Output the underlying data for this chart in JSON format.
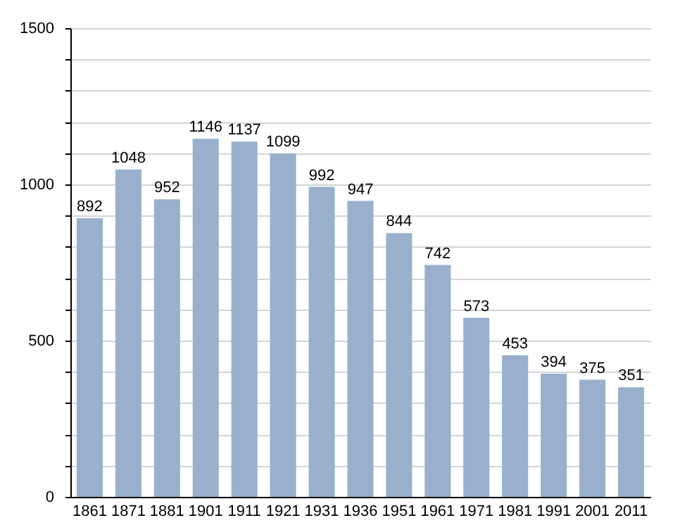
{
  "chart_data": {
    "type": "bar",
    "categories": [
      "1861",
      "1871",
      "1881",
      "1901",
      "1911",
      "1921",
      "1931",
      "1936",
      "1951",
      "1961",
      "1971",
      "1981",
      "1991",
      "2001",
      "2011"
    ],
    "values": [
      892,
      1048,
      952,
      1146,
      1137,
      1099,
      992,
      947,
      844,
      742,
      573,
      453,
      394,
      375,
      351
    ],
    "color": "#98b0cc",
    "ylim": [
      0,
      1500
    ],
    "yticks": [
      0,
      {
        "value": 100,
        "label": null
      },
      {
        "value": 200,
        "label": null
      },
      {
        "value": 300,
        "label": null
      },
      {
        "value": 400,
        "label": null
      },
      500,
      {
        "value": 600,
        "label": null
      },
      {
        "value": 700,
        "label": null
      },
      {
        "value": 800,
        "label": null
      },
      {
        "value": 900,
        "label": null
      },
      1000,
      {
        "value": 1100,
        "label": null
      },
      {
        "value": 1200,
        "label": null
      },
      {
        "value": 1300,
        "label": null
      },
      {
        "value": 1400,
        "label": null
      },
      1500
    ],
    "grid": true,
    "data_labels": true
  }
}
